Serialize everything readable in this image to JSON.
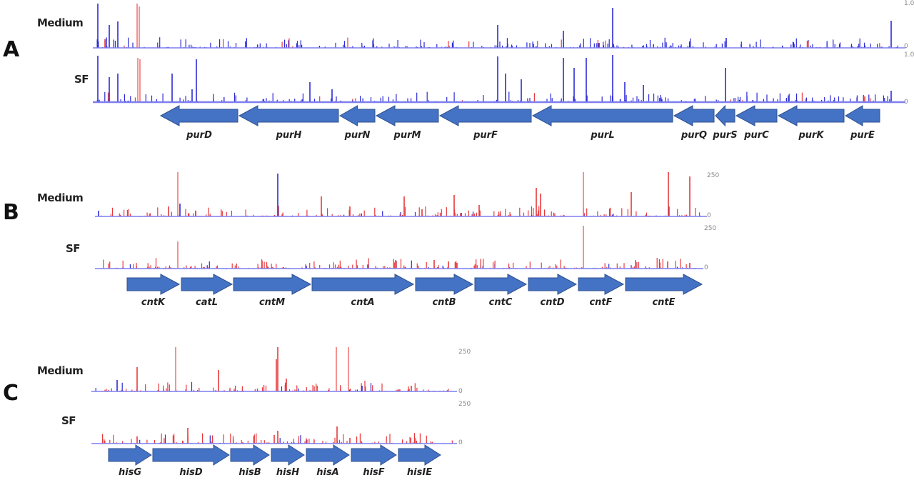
{
  "colors": {
    "blue": "#2b2bd6",
    "red": "#e8383b",
    "pink": "#f07878",
    "baseline": "#7f7ff0",
    "arrow_fill": "#4472c4",
    "arrow_stroke": "#2f528f"
  },
  "panels": [
    {
      "letter": "A",
      "tracks": [
        {
          "label": "Medium",
          "scale_top": "1.0",
          "scale_bottom": "0"
        },
        {
          "label": "SF",
          "scale_top": "1.0",
          "scale_bottom": "0"
        }
      ],
      "direction": "left",
      "genes": [
        "purD",
        "purH",
        "purN",
        "purM",
        "purF",
        "purL",
        "purQ",
        "purS",
        "purC",
        "purK",
        "purE"
      ]
    },
    {
      "letter": "B",
      "tracks": [
        {
          "label": "Medium",
          "scale_top": "250",
          "scale_bottom": "0"
        },
        {
          "label": "SF",
          "scale_top": "250",
          "scale_bottom": "0"
        }
      ],
      "direction": "right",
      "genes": [
        "cntK",
        "catL",
        "cntM",
        "cntA",
        "cntB",
        "cntC",
        "cntD",
        "cntF",
        "cntE"
      ]
    },
    {
      "letter": "C",
      "tracks": [
        {
          "label": "Medium",
          "scale_top": "250",
          "scale_bottom": "0"
        },
        {
          "label": "SF",
          "scale_top": "250",
          "scale_bottom": "0"
        }
      ],
      "direction": "right",
      "genes": [
        "hisG",
        "hisD",
        "hisB",
        "hisH",
        "hisA",
        "hisF",
        "hisIE"
      ]
    }
  ]
}
